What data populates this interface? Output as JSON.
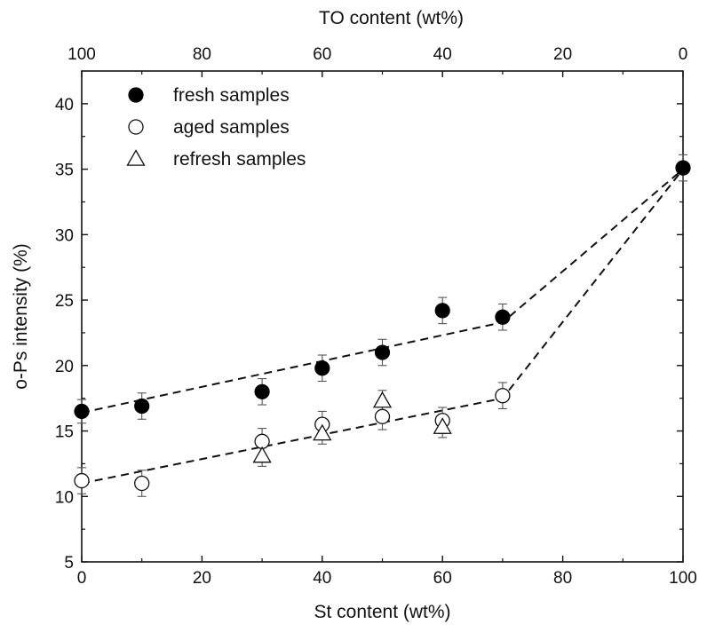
{
  "chart_data": {
    "type": "scatter",
    "title": "",
    "xlabel": "St content (wt%)",
    "x2label": "TO content (wt%)",
    "ylabel": "o-Ps intensity (%)",
    "xlim": [
      0,
      100
    ],
    "x2lim": [
      100,
      0
    ],
    "ylim": [
      5,
      42.5
    ],
    "x_ticks": [
      "0",
      "20",
      "40",
      "60",
      "80",
      "100"
    ],
    "x2_ticks": [
      "100",
      "80",
      "60",
      "40",
      "20",
      "0"
    ],
    "y_ticks": [
      "5",
      "10",
      "15",
      "20",
      "25",
      "30",
      "35",
      "40"
    ],
    "grid": false,
    "legend_position": "top-left",
    "series": [
      {
        "name": "fresh samples",
        "marker": "filled-circle",
        "x": [
          0,
          10,
          30,
          40,
          50,
          60,
          70,
          100
        ],
        "y": [
          16.5,
          16.9,
          18.0,
          19.8,
          21.0,
          24.2,
          23.7,
          35.1
        ],
        "err": [
          0.9,
          1.0,
          1.0,
          1.0,
          1.0,
          1.0,
          1.0,
          1.0
        ]
      },
      {
        "name": "aged samples",
        "marker": "open-circle",
        "x": [
          0,
          10,
          30,
          40,
          50,
          60,
          70
        ],
        "y": [
          11.2,
          11.0,
          14.2,
          15.5,
          16.1,
          15.8,
          17.7
        ],
        "err": [
          1.0,
          1.0,
          1.0,
          1.0,
          1.0,
          1.0,
          1.0
        ]
      },
      {
        "name": "refresh samples",
        "marker": "open-triangle",
        "x": [
          30,
          40,
          50,
          60
        ],
        "y": [
          13.1,
          14.8,
          17.3,
          15.3
        ],
        "err": [
          0.8,
          0.8,
          0.8,
          0.8
        ]
      }
    ],
    "fit_lines": [
      {
        "name": "fresh-trend",
        "x": [
          0,
          70,
          100
        ],
        "y": [
          16.4,
          23.3,
          35.0
        ]
      },
      {
        "name": "aged-trend",
        "x": [
          0,
          70,
          100
        ],
        "y": [
          11.0,
          17.5,
          35.0
        ]
      }
    ]
  }
}
